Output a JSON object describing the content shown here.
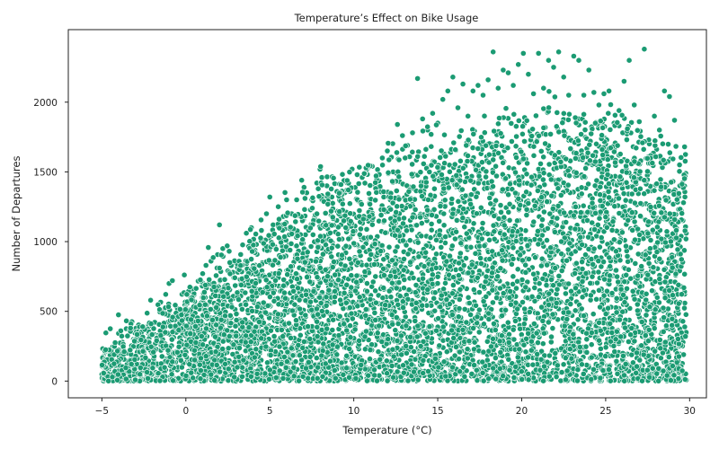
{
  "chart_data": {
    "type": "scatter",
    "title": "Temperature’s Effect on Bike Usage",
    "xlabel": "Temperature (°C)",
    "ylabel": "Number of Departures",
    "xlim": [
      -7.0,
      31.0
    ],
    "ylim": [
      -120,
      2520
    ],
    "xticks": [
      -5,
      0,
      5,
      10,
      15,
      20,
      25,
      30
    ],
    "xtick_labels": [
      "−5",
      "0",
      "5",
      "10",
      "15",
      "20",
      "25",
      "30"
    ],
    "yticks": [
      0,
      500,
      1000,
      1500,
      2000
    ],
    "ytick_labels": [
      "0",
      "500",
      "1000",
      "1500",
      "2000"
    ],
    "grid": false,
    "legend": "none",
    "color": "#1b9b73",
    "points": {
      "x": [
        -4.8,
        -4.5,
        -4.2,
        -3.5,
        -3.0,
        -2.5,
        -2.1,
        -1.8,
        -1.5,
        -1.0,
        -0.8,
        -0.5,
        -0.2,
        0.0,
        0.3,
        0.5,
        0.9,
        1.2,
        1.5,
        1.8,
        2.0,
        2.2,
        2.5,
        2.8,
        3.0,
        3.3,
        3.6,
        3.9,
        4.2,
        4.5,
        4.8,
        5.0,
        5.2,
        5.5,
        5.8,
        6.0,
        6.3,
        6.6,
        6.9,
        7.2,
        7.5,
        7.8,
        8.1,
        8.4,
        8.7,
        9.0,
        9.3,
        9.6,
        9.9,
        10.2,
        10.5,
        10.8,
        11.1,
        11.4,
        11.7,
        12.0,
        12.3,
        12.6,
        12.9,
        13.2,
        13.5,
        13.8,
        14.1,
        14.4,
        14.7,
        15.0,
        15.3,
        15.6,
        15.9,
        16.2,
        16.5,
        16.8,
        17.1,
        17.4,
        17.7,
        18.0,
        18.3,
        18.6,
        18.9,
        19.2,
        19.5,
        19.8,
        20.1,
        20.4,
        20.7,
        21.0,
        21.3,
        21.6,
        21.9,
        22.2,
        22.5,
        22.8,
        23.1,
        23.4,
        23.7,
        24.0,
        24.3,
        24.6,
        24.9,
        25.2,
        25.5,
        25.8,
        26.1,
        26.4,
        26.7,
        27.0,
        27.3,
        27.6,
        27.9,
        28.2,
        28.5,
        28.8,
        29.1,
        29.4,
        29.7,
        -4.6,
        -3.8,
        -2.8,
        -1.2,
        0.6,
        1.6,
        3.1,
        4.4,
        5.9,
        7.4,
        9.1,
        10.7,
        12.2,
        14.2,
        16.1,
        17.8,
        19.6,
        21.2,
        23.3,
        25.1,
        27.2,
        28.9,
        -4.9,
        -0.9,
        1.1,
        2.1,
        3.9,
        6.1,
        8.0,
        11.0,
        13.7,
        15.8,
        18.8,
        20.3,
        22.9,
        24.7,
        26.6,
        28.0,
        29.8
      ],
      "y": [
        210,
        375,
        40,
        120,
        370,
        260,
        580,
        330,
        300,
        700,
        720,
        520,
        410,
        450,
        600,
        620,
        560,
        830,
        860,
        680,
        1120,
        950,
        660,
        780,
        840,
        700,
        1060,
        1100,
        980,
        1080,
        1200,
        1320,
        1120,
        1250,
        1180,
        1300,
        1200,
        1300,
        1440,
        1350,
        1300,
        1420,
        1460,
        1400,
        1320,
        1360,
        1300,
        1420,
        1520,
        1480,
        1460,
        1520,
        1540,
        1450,
        1600,
        1650,
        1700,
        1840,
        1760,
        1690,
        1780,
        2170,
        1880,
        1800,
        1920,
        1850,
        2020,
        2080,
        2180,
        1960,
        2130,
        1900,
        2080,
        2120,
        2050,
        2160,
        2360,
        2100,
        2230,
        2210,
        2120,
        2270,
        2350,
        2200,
        2060,
        2350,
        2100,
        2300,
        2250,
        2360,
        2180,
        2050,
        2330,
        2300,
        2050,
        2230,
        2070,
        1980,
        2060,
        2080,
        1850,
        1940,
        2150,
        2300,
        1980,
        1860,
        2380,
        1700,
        1900,
        1800,
        2080,
        2040,
        1870,
        1550,
        1680,
        40,
        20,
        30,
        80,
        120,
        180,
        250,
        200,
        160,
        140,
        120,
        100,
        80,
        60,
        50,
        70,
        120,
        160,
        240,
        300,
        440,
        640,
        180,
        330,
        240,
        160,
        120,
        90,
        70,
        60,
        40,
        90,
        130,
        60,
        80,
        170,
        290,
        620,
        1060
      ],
      "density": {
        "description": "dense band of thousands of hourly observations",
        "lower_edge_y": 0
      }
    }
  }
}
